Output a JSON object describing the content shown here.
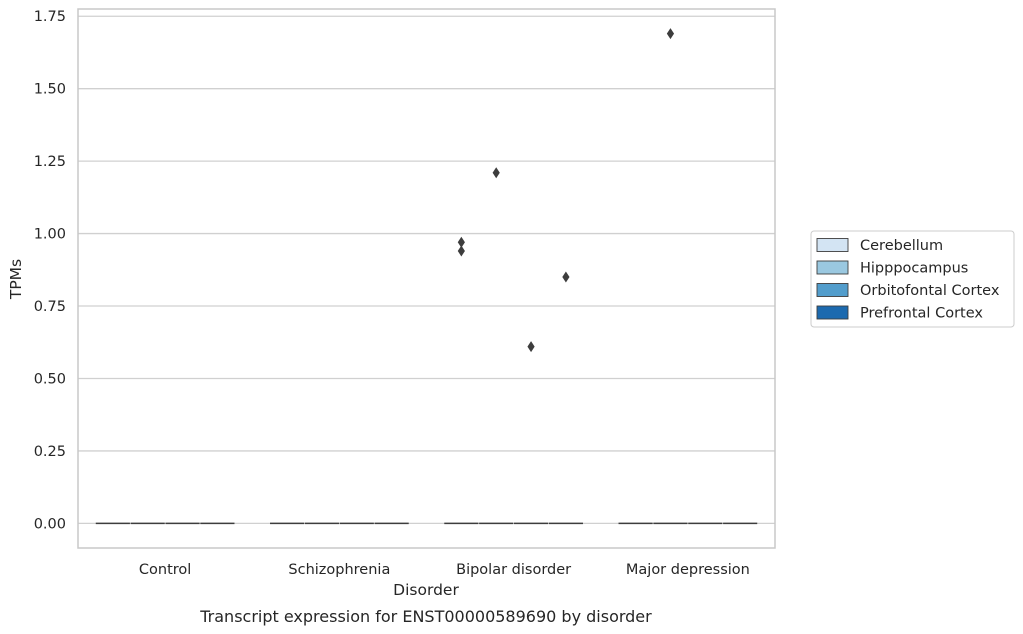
{
  "chart_data": {
    "type": "box",
    "title": "Transcript expression for ENST00000589690 by disorder",
    "xlabel": "Disorder",
    "ylabel": "TPMs",
    "ylim": [
      -0.085,
      1.775
    ],
    "yticks": [
      0.0,
      0.25,
      0.5,
      0.75,
      1.0,
      1.25,
      1.5,
      1.75
    ],
    "ytick_labels": [
      "0.00",
      "0.25",
      "0.50",
      "0.75",
      "1.00",
      "1.25",
      "1.50",
      "1.75"
    ],
    "grid": "horizontal",
    "legend_position": "right",
    "categories": [
      "Control",
      "Schizophrenia",
      "Bipolar disorder",
      "Major depression"
    ],
    "series": [
      {
        "name": "Cerebellum",
        "color": "#d3e4f3",
        "boxes": [
          {
            "q1": 0,
            "median": 0,
            "q3": 0,
            "whisker_low": 0,
            "whisker_high": 0,
            "outliers": []
          },
          {
            "q1": 0,
            "median": 0,
            "q3": 0,
            "whisker_low": 0,
            "whisker_high": 0,
            "outliers": []
          },
          {
            "q1": 0,
            "median": 0,
            "q3": 0,
            "whisker_low": 0,
            "whisker_high": 0,
            "outliers": [
              0.97,
              0.94
            ]
          },
          {
            "q1": 0,
            "median": 0,
            "q3": 0,
            "whisker_low": 0,
            "whisker_high": 0,
            "outliers": []
          }
        ]
      },
      {
        "name": "Hipppocampus",
        "color": "#9ac8e0",
        "boxes": [
          {
            "q1": 0,
            "median": 0,
            "q3": 0,
            "whisker_low": 0,
            "whisker_high": 0,
            "outliers": []
          },
          {
            "q1": 0,
            "median": 0,
            "q3": 0,
            "whisker_low": 0,
            "whisker_high": 0,
            "outliers": []
          },
          {
            "q1": 0,
            "median": 0,
            "q3": 0,
            "whisker_low": 0,
            "whisker_high": 0,
            "outliers": [
              1.21
            ]
          },
          {
            "q1": 0,
            "median": 0,
            "q3": 0,
            "whisker_low": 0,
            "whisker_high": 0,
            "outliers": [
              1.69
            ]
          }
        ]
      },
      {
        "name": "Orbitofontal Cortex",
        "color": "#529dcc",
        "boxes": [
          {
            "q1": 0,
            "median": 0,
            "q3": 0,
            "whisker_low": 0,
            "whisker_high": 0,
            "outliers": []
          },
          {
            "q1": 0,
            "median": 0,
            "q3": 0,
            "whisker_low": 0,
            "whisker_high": 0,
            "outliers": []
          },
          {
            "q1": 0,
            "median": 0,
            "q3": 0,
            "whisker_low": 0,
            "whisker_high": 0,
            "outliers": [
              0.61
            ]
          },
          {
            "q1": 0,
            "median": 0,
            "q3": 0,
            "whisker_low": 0,
            "whisker_high": 0,
            "outliers": []
          }
        ]
      },
      {
        "name": "Prefrontal Cortex",
        "color": "#1c6aaf",
        "boxes": [
          {
            "q1": 0,
            "median": 0,
            "q3": 0,
            "whisker_low": 0,
            "whisker_high": 0,
            "outliers": []
          },
          {
            "q1": 0,
            "median": 0,
            "q3": 0,
            "whisker_low": 0,
            "whisker_high": 0,
            "outliers": []
          },
          {
            "q1": 0,
            "median": 0,
            "q3": 0,
            "whisker_low": 0,
            "whisker_high": 0,
            "outliers": [
              0.85
            ]
          },
          {
            "q1": 0,
            "median": 0,
            "q3": 0,
            "whisker_low": 0,
            "whisker_high": 0,
            "outliers": []
          }
        ]
      }
    ],
    "colors": {
      "grid": "#d0d0d0",
      "frame": "#c8c8c8",
      "mark": "#3d3d3d",
      "text": "#262626"
    }
  }
}
